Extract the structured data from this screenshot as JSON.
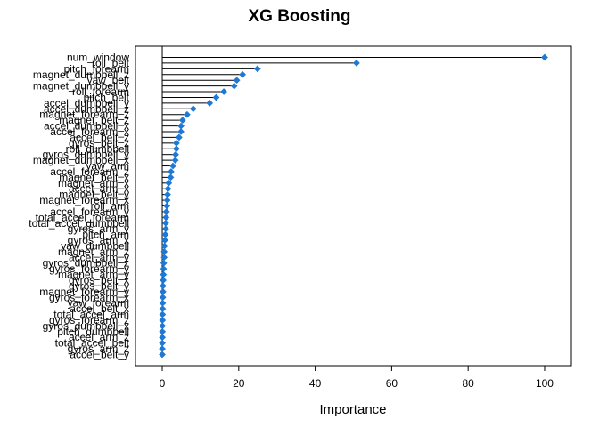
{
  "chart_data": {
    "type": "scatter",
    "style": "dotchart-with-stems",
    "title": "XG Boosting",
    "xlabel": "Importance",
    "ylabel": "",
    "xlim": [
      -7,
      107
    ],
    "xticks": [
      0,
      20,
      40,
      60,
      80,
      100
    ],
    "grid": false,
    "legend": "none",
    "point_color": "#1f78d4",
    "line_color": "#000000",
    "series": [
      {
        "categories": [
          "num_window",
          "roll_belt",
          "pitch_forearm",
          "magnet_dumbbell_z",
          "yaw_belt",
          "magnet_dumbbell_y",
          "roll_forearm",
          "pitch_belt",
          "accel_dumbbell_y",
          "accel_dumbbell_z",
          "magnet_forearm_z",
          "magnet_belt_z",
          "accel_dumbbell_x",
          "accel_forearm_x",
          "accel_belt_z",
          "gyros_belt_z",
          "roll_dumbbell",
          "gyros_dumbbell_y",
          "magnet_dumbbell_x",
          "yaw_arm",
          "accel_forearm_z",
          "magnet_belt_x",
          "magnet_arm_x",
          "accel_arm_x",
          "magnet_belt_y",
          "magnet_forearm_x",
          "roll_arm",
          "accel_forearm_y",
          "total_accel_forearm",
          "total_accel_dumbbell",
          "gyros_arm_y",
          "pitch_arm",
          "gyros_arm_x",
          "yaw_dumbbell",
          "magnet_arm_z",
          "accel_arm_y",
          "gyros_dumbbell_z",
          "gyros_forearm_y",
          "magnet_arm_y",
          "gyros_belt_x",
          "gyros_belt_y",
          "magnet_forearm_y",
          "gyros_forearm_x",
          "yaw_forearm",
          "accel_belt_x",
          "total_accel_arm",
          "gyros_forearm_z",
          "gyros_dumbbell_x",
          "pitch_dumbbell",
          "accel_arm_z",
          "total_accel_belt",
          "gyros_arm_z",
          "accel_belt_y"
        ],
        "values": [
          100,
          50.8,
          24.9,
          21.0,
          19.5,
          18.8,
          16.1,
          14.1,
          12.4,
          8.1,
          6.5,
          5.3,
          4.9,
          4.9,
          4.4,
          3.7,
          3.7,
          3.5,
          3.4,
          2.8,
          2.3,
          2.2,
          1.7,
          1.5,
          1.4,
          1.3,
          1.2,
          1.1,
          1.0,
          0.9,
          0.9,
          0.8,
          0.7,
          0.6,
          0.5,
          0.5,
          0.4,
          0.35,
          0.3,
          0.25,
          0.2,
          0.2,
          0.15,
          0.12,
          0.1,
          0.08,
          0.06,
          0.05,
          0.04,
          0.03,
          0.02,
          0.01,
          0.0
        ]
      }
    ]
  }
}
